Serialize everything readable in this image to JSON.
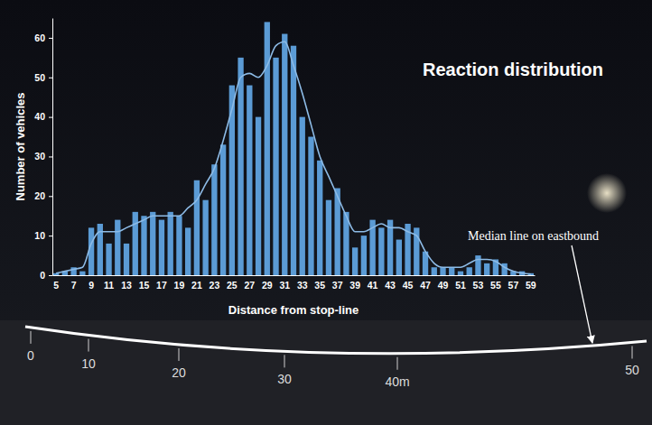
{
  "chart_data": {
    "type": "bar",
    "title": "Reaction distribution",
    "x_label": "Distance from stop-line",
    "y_label": "Number of vehicles",
    "categories": [
      "5",
      null,
      "7",
      null,
      "9",
      null,
      "11",
      null,
      "13",
      null,
      "15",
      null,
      "17",
      null,
      "19",
      null,
      "21",
      null,
      "23",
      null,
      "25",
      null,
      "27",
      null,
      "29",
      null,
      "31",
      null,
      "33",
      null,
      "35",
      null,
      "37",
      null,
      "39",
      null,
      "41",
      null,
      "43",
      null,
      "45",
      null,
      "47",
      null,
      "49",
      null,
      "51",
      null,
      "53",
      null,
      "55",
      null,
      "57",
      null,
      "59"
    ],
    "series": [
      {
        "type": "bar",
        "color": "#5b9bd5",
        "values": [
          0.5,
          1,
          2,
          1,
          12,
          13,
          8,
          14,
          8,
          16,
          15,
          16,
          14,
          16,
          15,
          12,
          24,
          19,
          28,
          33,
          48,
          55,
          48,
          40,
          64,
          55,
          61,
          58,
          40,
          35,
          29,
          19,
          22,
          16,
          7,
          10,
          14,
          12,
          14,
          9,
          13,
          12,
          6,
          2,
          2,
          2,
          1,
          2,
          5,
          3,
          4,
          3,
          1,
          1,
          0.5
        ]
      },
      {
        "type": "line",
        "color": "#8dbbe6",
        "values": [
          0.5,
          1,
          1.5,
          2,
          8,
          11,
          11,
          11,
          12,
          13,
          14,
          15,
          15,
          15,
          15,
          17,
          19,
          23,
          27,
          34,
          42,
          50,
          51,
          50,
          53,
          58,
          59,
          53,
          46,
          38,
          30,
          25,
          20,
          15,
          11,
          11,
          12,
          13,
          12,
          12,
          11,
          10,
          6,
          3,
          2,
          2,
          2,
          3,
          4,
          4,
          3.5,
          2,
          1,
          0.5,
          0.3
        ]
      }
    ],
    "ylim": [
      0,
      65
    ],
    "yticks": [
      0,
      10,
      20,
      30,
      40,
      50,
      60
    ],
    "grid": false,
    "annotations": [
      {
        "text": "Median line on eastbound"
      }
    ],
    "scale_labels": [
      "0",
      "10",
      "20",
      "30",
      "40m",
      "50"
    ]
  }
}
